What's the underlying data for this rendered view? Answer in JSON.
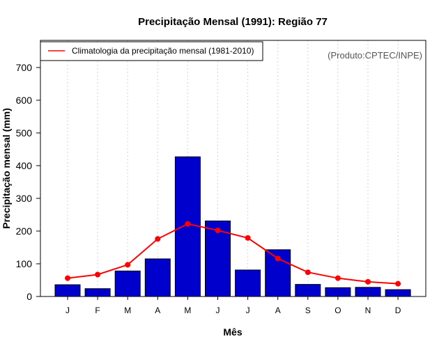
{
  "chart_data": {
    "type": "bar",
    "title": "Precipitação Mensal (1991): Região 77",
    "xlabel": "Mês",
    "ylabel": "Precipitação mensal (mm)",
    "ylim": [
      0,
      780
    ],
    "yticks": [
      0,
      100,
      200,
      300,
      400,
      500,
      600,
      700
    ],
    "categories": [
      "J",
      "F",
      "M",
      "A",
      "M",
      "J",
      "J",
      "A",
      "S",
      "O",
      "N",
      "D"
    ],
    "series": [
      {
        "name": "Precipitação mensal (1991)",
        "type": "bar",
        "color": "#0000cd",
        "values": [
          36,
          24,
          78,
          115,
          427,
          231,
          81,
          143,
          37,
          27,
          28,
          21
        ]
      },
      {
        "name": "Climatologia da precipitação mensal (1981-2010)",
        "type": "line",
        "color": "#ff0000",
        "values": [
          56,
          67,
          97,
          176,
          222,
          202,
          179,
          116,
          74,
          56,
          45,
          39
        ]
      }
    ],
    "legend": {
      "position": "top-left",
      "entries": [
        "Climatologia da precipitação mensal (1981-2010)"
      ]
    },
    "credit": "(Produto:CPTEC/INPE)",
    "grid": "vertical-dotted"
  }
}
